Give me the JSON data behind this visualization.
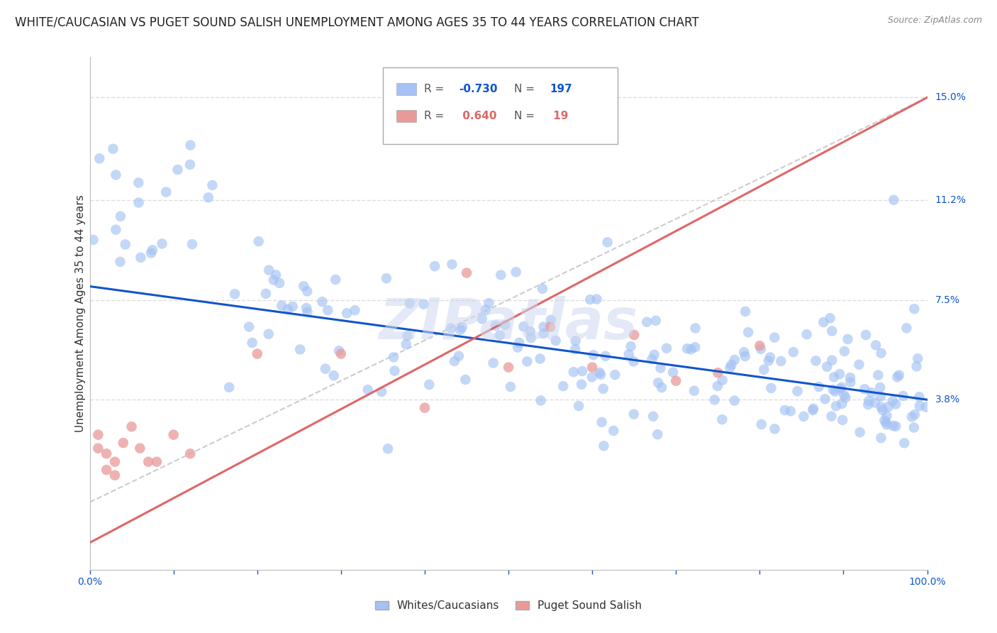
{
  "title": "WHITE/CAUCASIAN VS PUGET SOUND SALISH UNEMPLOYMENT AMONG AGES 35 TO 44 YEARS CORRELATION CHART",
  "source": "Source: ZipAtlas.com",
  "ylabel": "Unemployment Among Ages 35 to 44 years",
  "xlim": [
    0,
    100
  ],
  "ylim": [
    -2.5,
    16.5
  ],
  "ytick_labels_right": [
    {
      "value": 15.0,
      "label": "15.0%"
    },
    {
      "value": 11.2,
      "label": "11.2%"
    },
    {
      "value": 7.5,
      "label": "7.5%"
    },
    {
      "value": 3.8,
      "label": "3.8%"
    }
  ],
  "blue_R": "-0.730",
  "blue_N": "197",
  "pink_R": "0.640",
  "pink_N": "19",
  "blue_color": "#a4c2f4",
  "pink_color": "#ea9999",
  "blue_line_color": "#1155cc",
  "pink_line_color": "#e06666",
  "dashed_line_color": "#cccccc",
  "watermark": "ZIPatlas",
  "blue_trend_y_start": 8.0,
  "blue_trend_y_end": 3.8,
  "pink_trend_y_start": -1.5,
  "pink_trend_y_end": 15.0,
  "dashed_trend_y_start": 0.0,
  "dashed_trend_y_end": 15.0,
  "grid_color": "#dddddd",
  "background_color": "#ffffff",
  "title_fontsize": 12,
  "axis_label_fontsize": 11,
  "tick_fontsize": 10,
  "legend_fontsize": 11
}
